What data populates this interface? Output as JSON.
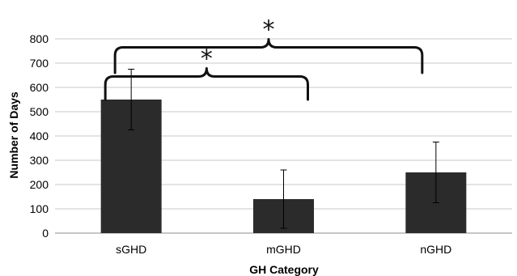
{
  "chart_data": {
    "type": "bar",
    "categories": [
      "sGHD",
      "mGHD",
      "nGHD"
    ],
    "values": [
      550,
      140,
      250
    ],
    "error": [
      125,
      120,
      125
    ],
    "xlabel": "GH Category",
    "ylabel": "Number of Days",
    "ylim": [
      0,
      800
    ],
    "yticks": [
      0,
      100,
      200,
      300,
      400,
      500,
      600,
      700,
      800
    ],
    "grid": true,
    "bar_color": "#2b2b2b",
    "significance": [
      {
        "from": "sGHD",
        "to": "mGHD",
        "label": "*"
      },
      {
        "from": "sGHD",
        "to": "nGHD",
        "label": "*"
      }
    ]
  }
}
